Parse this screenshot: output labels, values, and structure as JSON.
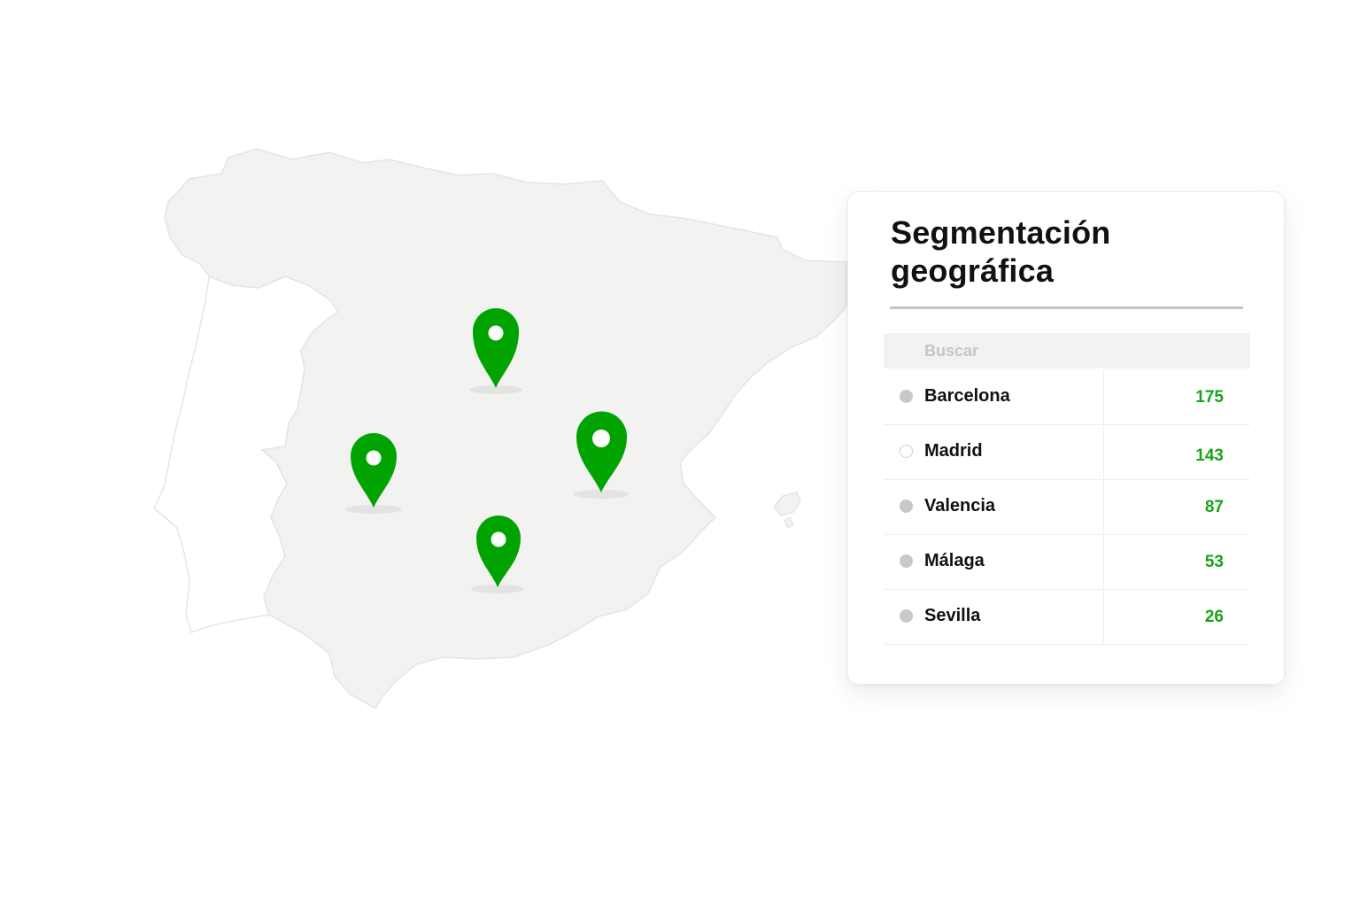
{
  "colors": {
    "accent": "#00a300",
    "count_text": "#1aa31a",
    "map_land": "#f2f2f1",
    "map_border": "#e4e4e3",
    "search_bg": "#f2f2f1",
    "dot_inactive": "#c8c8c8"
  },
  "map": {
    "icon": "location-pin-icon",
    "pin_count": 4
  },
  "panel": {
    "title": "Segmentación geográfica",
    "search": {
      "placeholder": "Buscar",
      "value": ""
    },
    "rows": [
      {
        "city": "Barcelona",
        "count": "175",
        "selected": false
      },
      {
        "city": "Madrid",
        "count": "143",
        "selected": true
      },
      {
        "city": "Valencia",
        "count": "87",
        "selected": false
      },
      {
        "city": "Málaga",
        "count": "53",
        "selected": false
      },
      {
        "city": "Sevilla",
        "count": "26",
        "selected": false
      }
    ]
  }
}
